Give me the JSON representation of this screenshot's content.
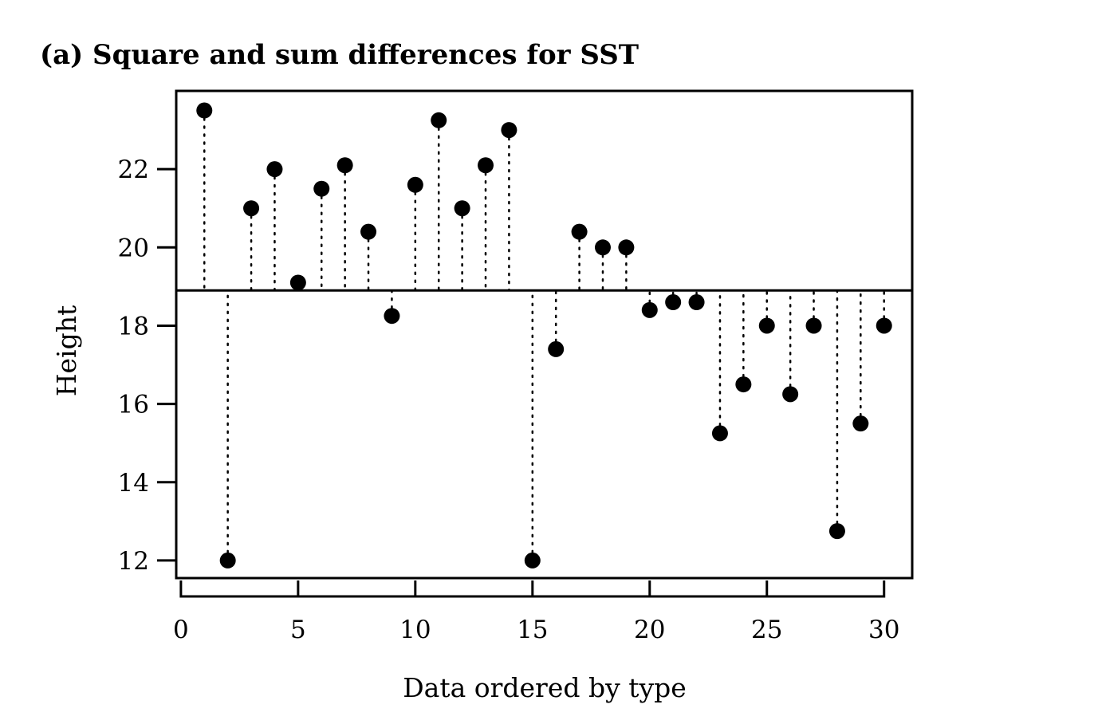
{
  "chart_data": {
    "type": "scatter",
    "title": "(a) Square and sum differences for SST",
    "xlabel": "Data ordered by type",
    "ylabel": "Height",
    "xlim": [
      -0.2,
      31.2
    ],
    "ylim": [
      11.55,
      24.0
    ],
    "xticks": [
      0,
      5,
      10,
      15,
      20,
      25,
      30
    ],
    "yticks": [
      12,
      14,
      16,
      18,
      20,
      22
    ],
    "grid": false,
    "reference_line": 18.9,
    "points": [
      {
        "x": 1,
        "y": 23.5
      },
      {
        "x": 2,
        "y": 12.0
      },
      {
        "x": 3,
        "y": 21.0
      },
      {
        "x": 4,
        "y": 22.0
      },
      {
        "x": 5,
        "y": 19.1
      },
      {
        "x": 6,
        "y": 21.5
      },
      {
        "x": 7,
        "y": 22.1
      },
      {
        "x": 8,
        "y": 20.4
      },
      {
        "x": 9,
        "y": 18.25
      },
      {
        "x": 10,
        "y": 21.6
      },
      {
        "x": 11,
        "y": 23.25
      },
      {
        "x": 12,
        "y": 21.0
      },
      {
        "x": 13,
        "y": 22.1
      },
      {
        "x": 14,
        "y": 23.0
      },
      {
        "x": 15,
        "y": 12.0
      },
      {
        "x": 16,
        "y": 17.4
      },
      {
        "x": 17,
        "y": 20.4
      },
      {
        "x": 18,
        "y": 20.0
      },
      {
        "x": 19,
        "y": 20.0
      },
      {
        "x": 20,
        "y": 18.4
      },
      {
        "x": 21,
        "y": 18.6
      },
      {
        "x": 22,
        "y": 18.6
      },
      {
        "x": 23,
        "y": 15.25
      },
      {
        "x": 24,
        "y": 16.5
      },
      {
        "x": 25,
        "y": 18.0
      },
      {
        "x": 26,
        "y": 16.25
      },
      {
        "x": 27,
        "y": 18.0
      },
      {
        "x": 28,
        "y": 12.75
      },
      {
        "x": 29,
        "y": 15.5
      },
      {
        "x": 30,
        "y": 18.0
      }
    ]
  }
}
